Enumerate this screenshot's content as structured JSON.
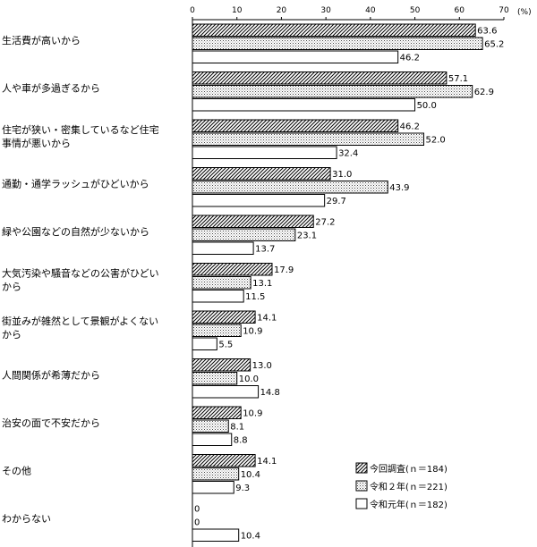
{
  "chart_data": {
    "type": "bar",
    "orientation": "horizontal",
    "unit_label": "(%)",
    "xlim": [
      0,
      70
    ],
    "xticks": [
      "0",
      "10",
      "20",
      "30",
      "40",
      "50",
      "60",
      "70"
    ],
    "categories": [
      [
        "生活費が高いから"
      ],
      [
        "人や車が多過ぎるから"
      ],
      [
        "住宅が狭い・密集しているなど住宅",
        "事情が悪いから"
      ],
      [
        "通勤・通学ラッシュがひどいから"
      ],
      [
        "緑や公園などの自然が少ないから"
      ],
      [
        "大気汚染や騒音などの公害がひどい",
        "から"
      ],
      [
        "街並みが雑然として景観がよくない",
        "から"
      ],
      [
        "人間関係が希薄だから"
      ],
      [
        "治安の面で不安だから"
      ],
      [
        "その他"
      ],
      [
        "わからない"
      ]
    ],
    "series": [
      {
        "name": "今回調査(ｎ＝184)",
        "pattern": "hatch",
        "values": [
          63.6,
          57.1,
          46.2,
          31.0,
          27.2,
          17.9,
          14.1,
          13.0,
          10.9,
          14.1,
          0
        ],
        "labels": [
          "63.6",
          "57.1",
          "46.2",
          "31.0",
          "27.2",
          "17.9",
          "14.1",
          "13.0",
          "10.9",
          "14.1",
          "0"
        ]
      },
      {
        "name": "令和２年(ｎ＝221)",
        "pattern": "dots",
        "values": [
          65.2,
          62.9,
          52.0,
          43.9,
          23.1,
          13.1,
          10.9,
          10.0,
          8.1,
          10.4,
          0
        ],
        "labels": [
          "65.2",
          "62.9",
          "52.0",
          "43.9",
          "23.1",
          "13.1",
          "10.9",
          "10.0",
          "8.1",
          "10.4",
          "0"
        ]
      },
      {
        "name": "令和元年(ｎ＝182)",
        "pattern": "white",
        "values": [
          46.2,
          50.0,
          32.4,
          29.7,
          13.7,
          11.5,
          5.5,
          14.8,
          8.8,
          9.3,
          10.4
        ],
        "labels": [
          "46.2",
          "50.0",
          "32.4",
          "29.7",
          "13.7",
          "11.5",
          "5.5",
          "14.8",
          "8.8",
          "9.3",
          "10.4"
        ]
      }
    ],
    "colors": {
      "stroke": "#000000",
      "hatch_fill": "#ffffff",
      "dots_fill": "#ffffff"
    },
    "grid": false,
    "legend_position": "bottom-right"
  }
}
